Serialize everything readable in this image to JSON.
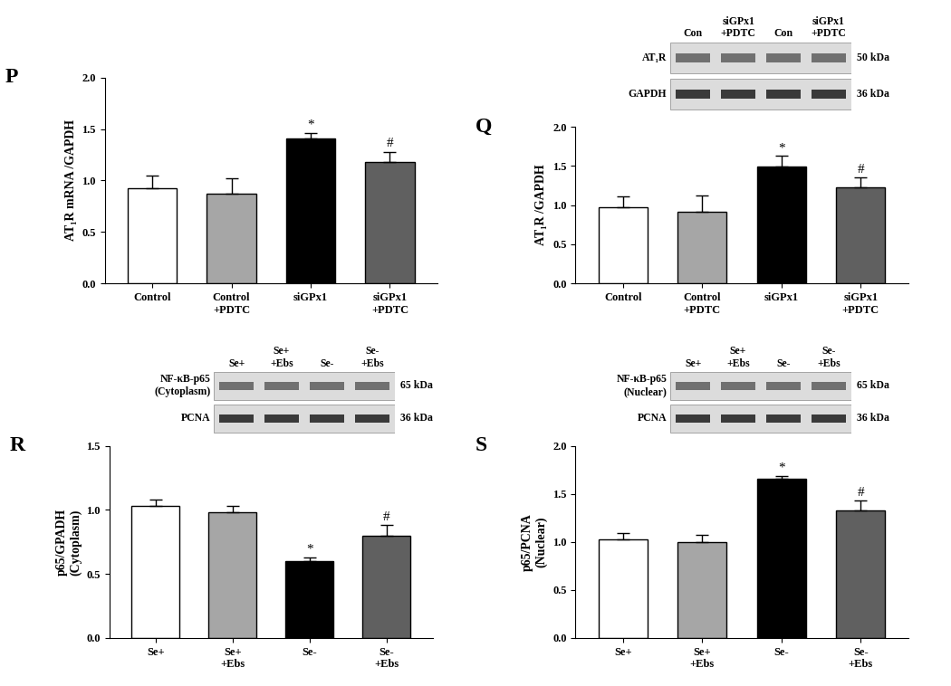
{
  "chart_data": [
    {
      "type": "bar",
      "panel": "P",
      "categories": [
        "Control",
        "Control\n+PDTC",
        "siGPx1",
        "siGPx1\n+PDTC"
      ],
      "values": [
        0.92,
        0.87,
        1.41,
        1.18
      ],
      "errors": [
        0.13,
        0.15,
        0.05,
        0.1
      ],
      "significance": [
        null,
        null,
        "*",
        "#"
      ],
      "colors": [
        "#ffffff",
        "#a6a6a6",
        "#000000",
        "#606060"
      ],
      "y_label": "AT₁R mRNA /GAPDH",
      "ylim": [
        0,
        2.0
      ],
      "yticks": [
        {
          "value": 0,
          "label": "0.0"
        },
        {
          "value": 0.5,
          "label": "0.5"
        },
        {
          "value": 1.0,
          "label": "1.0"
        },
        {
          "value": 1.5,
          "label": "1.5"
        },
        {
          "value": 2.0,
          "label": "2.0"
        }
      ]
    },
    {
      "type": "bar",
      "panel": "Q",
      "categories": [
        "Control",
        "Control\n+PDTC",
        "siGPx1",
        "siGPx1\n+PDTC"
      ],
      "values": [
        0.97,
        0.91,
        1.49,
        1.23
      ],
      "errors": [
        0.14,
        0.21,
        0.14,
        0.13
      ],
      "significance": [
        null,
        null,
        "*",
        "#"
      ],
      "colors": [
        "#ffffff",
        "#a6a6a6",
        "#000000",
        "#606060"
      ],
      "y_label": "AT₁R /GAPDH",
      "ylim": [
        0,
        2.0
      ],
      "yticks": [
        {
          "value": 0,
          "label": "0.0"
        },
        {
          "value": 0.5,
          "label": "0.5"
        },
        {
          "value": 1.0,
          "label": "1.0"
        },
        {
          "value": 1.5,
          "label": "1.5"
        },
        {
          "value": 2.0,
          "label": "2.0"
        }
      ],
      "blot": {
        "lanes": [
          "Con",
          "siGPx1\n+PDTC",
          "Con",
          "siGPx1\n+PDTC"
        ],
        "rows": [
          {
            "name": "AT₁R",
            "size": "50 kDa"
          },
          {
            "name": "GAPDH",
            "size": "36 kDa"
          }
        ]
      }
    },
    {
      "type": "bar",
      "panel": "R",
      "categories": [
        "Se+",
        "Se+\n+Ebs",
        "Se-",
        "Se-\n+Ebs"
      ],
      "values": [
        1.03,
        0.98,
        0.6,
        0.8
      ],
      "errors": [
        0.05,
        0.05,
        0.03,
        0.08
      ],
      "significance": [
        null,
        null,
        "*",
        "#"
      ],
      "colors": [
        "#ffffff",
        "#a6a6a6",
        "#000000",
        "#606060"
      ],
      "y_label": "p65/GPADH\n(Cytoplasm)",
      "ylim": [
        0,
        1.5
      ],
      "yticks": [
        {
          "value": 0,
          "label": "0.0"
        },
        {
          "value": 0.5,
          "label": "0.5"
        },
        {
          "value": 1.0,
          "label": "1.0"
        },
        {
          "value": 1.5,
          "label": "1.5"
        }
      ],
      "blot": {
        "lanes": [
          "Se+",
          "Se+\n+Ebs",
          "Se-",
          "Se-\n+Ebs"
        ],
        "rows": [
          {
            "name": "NF-κB-p65\n(Cytoplasm)",
            "size": "65 kDa"
          },
          {
            "name": "PCNA",
            "size": "36 kDa"
          }
        ]
      }
    },
    {
      "type": "bar",
      "panel": "S",
      "categories": [
        "Se+",
        "Se+\n+Ebs",
        "Se-",
        "Se-\n+Ebs"
      ],
      "values": [
        1.03,
        1.0,
        1.66,
        1.33
      ],
      "errors": [
        0.06,
        0.07,
        0.03,
        0.1
      ],
      "significance": [
        null,
        null,
        "*",
        "#"
      ],
      "colors": [
        "#ffffff",
        "#a6a6a6",
        "#000000",
        "#606060"
      ],
      "y_label": "p65/PCNA\n(Nuclear)",
      "ylim": [
        0,
        2.0
      ],
      "yticks": [
        {
          "value": 0,
          "label": "0.0"
        },
        {
          "value": 0.5,
          "label": "0.5"
        },
        {
          "value": 1.0,
          "label": "1.0"
        },
        {
          "value": 1.5,
          "label": "1.5"
        },
        {
          "value": 2.0,
          "label": "2.0"
        }
      ],
      "blot": {
        "lanes": [
          "Se+",
          "Se+\n+Ebs",
          "Se-",
          "Se-\n+Ebs"
        ],
        "rows": [
          {
            "name": "NF-κB-p65\n(Nuclear)",
            "size": "65 kDa"
          },
          {
            "name": "PCNA",
            "size": "36 kDa"
          }
        ]
      }
    }
  ]
}
